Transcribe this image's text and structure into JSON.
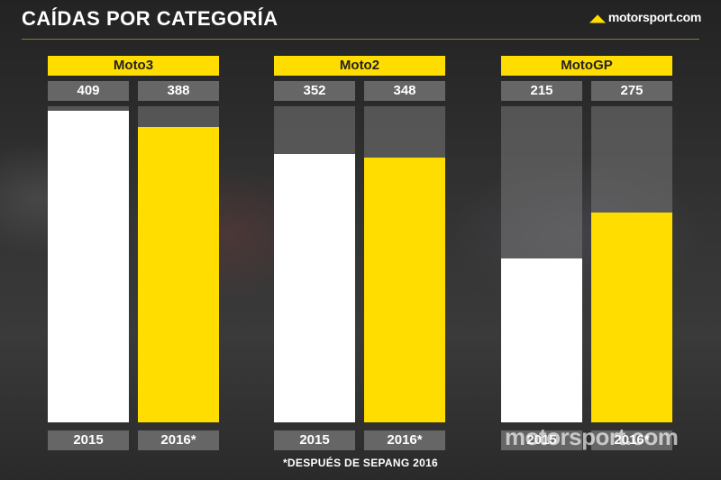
{
  "title": "CAÍDAS POR CATEGORÍA",
  "brand": "motorsport.com",
  "footnote": "*DESPUÉS DE SEPANG 2016",
  "colors": {
    "yellow": "#ffdd00",
    "white": "#ffffff",
    "grey": "#666666"
  },
  "chart_data": {
    "type": "bar",
    "title": "CAÍDAS POR CATEGORÍA",
    "groups": [
      {
        "name": "Moto3",
        "bars": [
          {
            "year": "2015",
            "value": 409
          },
          {
            "year": "2016*",
            "value": 388
          }
        ]
      },
      {
        "name": "Moto2",
        "bars": [
          {
            "year": "2015",
            "value": 352
          },
          {
            "year": "2016*",
            "value": 348
          }
        ]
      },
      {
        "name": "MotoGP",
        "bars": [
          {
            "year": "2015",
            "value": 215
          },
          {
            "year": "2016*",
            "value": 275
          }
        ]
      }
    ],
    "series": [
      {
        "name": "2015",
        "color": "#ffffff",
        "values": [
          409,
          352,
          215
        ]
      },
      {
        "name": "2016*",
        "color": "#ffdd00",
        "values": [
          388,
          348,
          275
        ]
      }
    ],
    "ylim": [
      0,
      415
    ],
    "grid": false
  }
}
